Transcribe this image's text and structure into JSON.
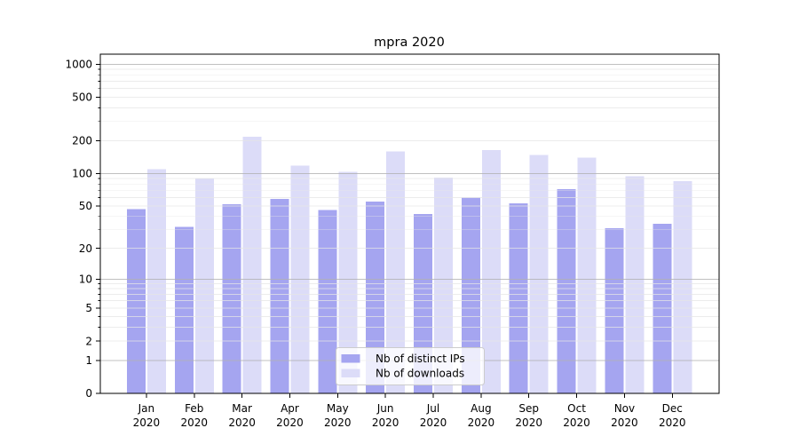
{
  "chart_data": {
    "type": "bar",
    "title": "mpra 2020",
    "categories": [
      "Jan",
      "Feb",
      "Mar",
      "Apr",
      "May",
      "Jun",
      "Jul",
      "Aug",
      "Sep",
      "Oct",
      "Nov",
      "Dec"
    ],
    "category_subline": "2020",
    "series": [
      {
        "name": "Nb of distinct IPs",
        "color": "#a5a5f0",
        "values": [
          47,
          32,
          52,
          58,
          46,
          55,
          42,
          60,
          53,
          72,
          31,
          34
        ]
      },
      {
        "name": "Nb of downloads",
        "color": "#dcdcf8",
        "values": [
          110,
          90,
          217,
          118,
          104,
          160,
          92,
          164,
          148,
          140,
          94,
          85
        ]
      }
    ],
    "yscale": "symlog",
    "ylim": [
      0,
      1235
    ],
    "yticks": [
      0,
      1,
      2,
      5,
      10,
      20,
      50,
      100,
      200,
      500,
      1000
    ],
    "major_grid_values": [
      1,
      10,
      100,
      1000
    ],
    "minor_grid_values": [
      2,
      3,
      4,
      5,
      6,
      7,
      8,
      9,
      20,
      30,
      40,
      50,
      60,
      70,
      80,
      90,
      200,
      300,
      400,
      500,
      600,
      700,
      800,
      900
    ],
    "grid": "on",
    "legend_position": "inside lower center",
    "colors": {
      "background": "#ffffff",
      "axis": "#000000",
      "major_grid": "#b0b0b0",
      "minor_grid": "#e6e6e6",
      "legend_border": "#cccccc",
      "legend_background": "rgba(255,255,255,0.8)"
    }
  }
}
